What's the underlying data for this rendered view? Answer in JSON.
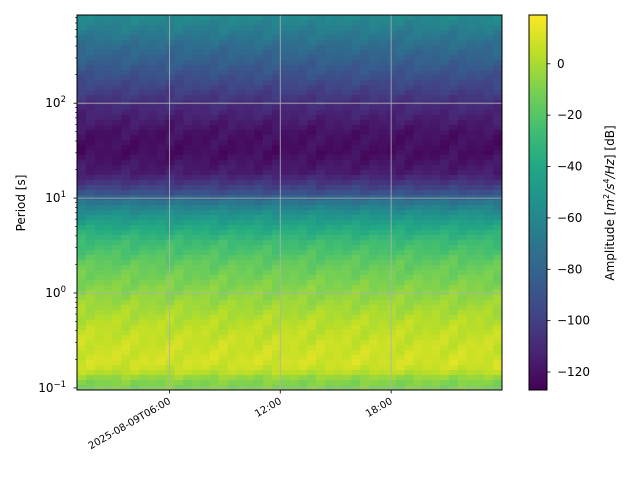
{
  "chart_data": {
    "type": "heatmap",
    "title": "",
    "ylabel": "Period [s]",
    "xlabel": "",
    "y_scale": "log",
    "y_range": [
      0.095,
      850
    ],
    "x_range": [
      "2025-08-09T01:00",
      "2025-08-10T00:00"
    ],
    "x_ticks": [
      {
        "value": "2025-08-09T06:00",
        "label": "2025-08-09T06:00"
      },
      {
        "value": "2025-08-09T12:00",
        "label": "12:00"
      },
      {
        "value": "2025-08-09T18:00",
        "label": "18:00"
      }
    ],
    "y_ticks": [
      {
        "value": 0.1,
        "base": "10",
        "exp": "−1"
      },
      {
        "value": 1,
        "base": "10",
        "exp": "0"
      },
      {
        "value": 10,
        "base": "10",
        "exp": "1"
      },
      {
        "value": 100,
        "base": "10",
        "exp": "2"
      }
    ],
    "grid": true,
    "colormap": "viridis",
    "colorbar": {
      "label_prefix": "Amplitude [",
      "label_m": "m",
      "label_m_exp": "2",
      "label_s": "/s",
      "label_s_exp": "4",
      "label_hz": "/Hz",
      "label_suffix": "] [dB]",
      "range": [
        -127,
        19
      ],
      "ticks": [
        "0",
        "−20",
        "−40",
        "−60",
        "−80",
        "−100",
        "−120"
      ],
      "tick_values": [
        0,
        -20,
        -40,
        -60,
        -80,
        -100,
        -120
      ]
    },
    "period_profile_db": [
      {
        "period": 850,
        "db": -58
      },
      {
        "period": 600,
        "db": -65
      },
      {
        "period": 400,
        "db": -75
      },
      {
        "period": 250,
        "db": -85
      },
      {
        "period": 150,
        "db": -97
      },
      {
        "period": 90,
        "db": -110
      },
      {
        "period": 50,
        "db": -120
      },
      {
        "period": 30,
        "db": -122
      },
      {
        "period": 18,
        "db": -115
      },
      {
        "period": 12,
        "db": -95
      },
      {
        "period": 9,
        "db": -70
      },
      {
        "period": 7,
        "db": -55
      },
      {
        "period": 5,
        "db": -40
      },
      {
        "period": 3.5,
        "db": -28
      },
      {
        "period": 2,
        "db": -16
      },
      {
        "period": 1,
        "db": -6
      },
      {
        "period": 0.5,
        "db": 3
      },
      {
        "period": 0.3,
        "db": 7
      },
      {
        "period": 0.18,
        "db": 9
      },
      {
        "period": 0.15,
        "db": 5
      },
      {
        "period": 0.12,
        "db": -8
      },
      {
        "period": 0.095,
        "db": -10
      }
    ]
  }
}
